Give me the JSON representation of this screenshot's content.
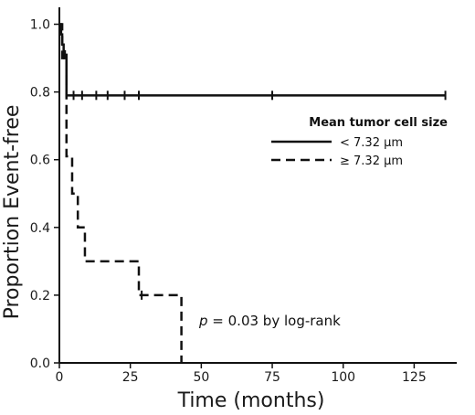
{
  "chart_data": {
    "type": "line",
    "subtype": "kaplan-meier",
    "xlabel": "Time (months)",
    "ylabel": "Proportion Event-free",
    "xlim": [
      0,
      140
    ],
    "ylim": [
      0,
      1.05
    ],
    "x_ticks": [
      0,
      25,
      50,
      75,
      100,
      125
    ],
    "x_tick_labels": [
      "0",
      "25",
      "50",
      "75",
      "100",
      "125"
    ],
    "y_ticks": [
      0.0,
      0.2,
      0.4,
      0.6,
      0.8,
      1.0
    ],
    "y_tick_labels": [
      "0.0",
      "0.2",
      "0.4",
      "0.6",
      "0.8",
      "1.0"
    ],
    "grid": false,
    "legend": {
      "title": "Mean tumor cell size",
      "placement": "right-center"
    },
    "series": [
      {
        "name": "< 7.32 μm",
        "style": "solid",
        "color": "#111111",
        "steps": [
          [
            0,
            1.0
          ],
          [
            0.6,
            0.97
          ],
          [
            1.0,
            0.94
          ],
          [
            1.5,
            0.91
          ],
          [
            2.5,
            0.79
          ],
          [
            136,
            0.79
          ]
        ],
        "censored": [
          [
            1.6,
            0.91
          ],
          [
            2.0,
            0.91
          ],
          [
            5,
            0.79
          ],
          [
            8,
            0.79
          ],
          [
            13,
            0.79
          ],
          [
            17,
            0.79
          ],
          [
            23,
            0.79
          ],
          [
            28,
            0.79
          ],
          [
            75,
            0.79
          ],
          [
            136,
            0.79
          ]
        ]
      },
      {
        "name": "≥ 7.32 μm",
        "style": "dashed",
        "color": "#111111",
        "steps": [
          [
            0,
            1.0
          ],
          [
            1.0,
            0.9
          ],
          [
            2.5,
            0.61
          ],
          [
            4.5,
            0.5
          ],
          [
            6.5,
            0.4
          ],
          [
            9,
            0.3
          ],
          [
            28,
            0.2
          ],
          [
            43,
            0.0
          ]
        ],
        "censored": [
          [
            29,
            0.2
          ]
        ]
      }
    ],
    "annotation": {
      "p_symbol": "p",
      "text": " = 0.03 by log-rank"
    }
  }
}
